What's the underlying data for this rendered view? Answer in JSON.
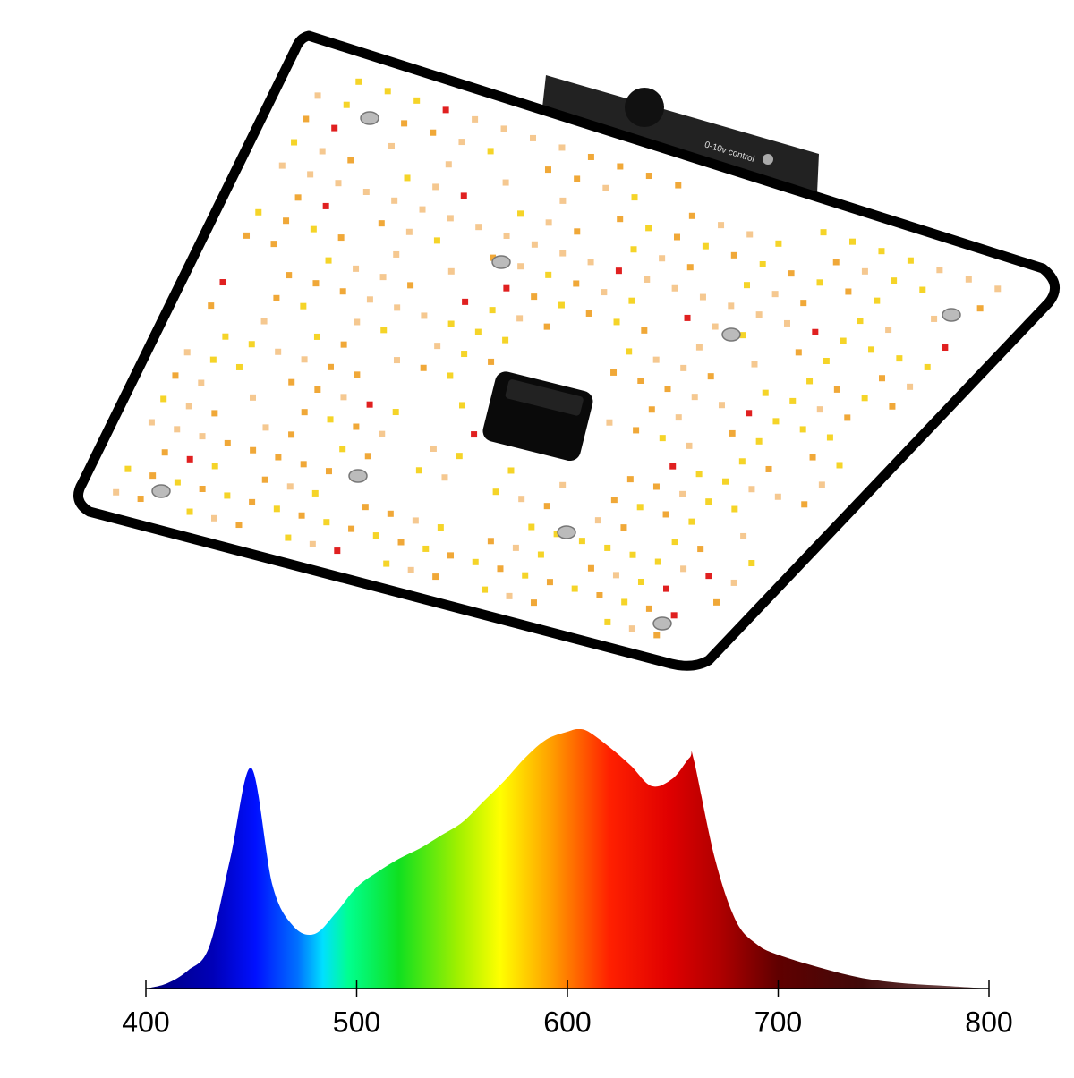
{
  "product": {
    "label": "0-10v control"
  },
  "chart_data": {
    "type": "area",
    "x": [
      400,
      410,
      420,
      430,
      440,
      450,
      460,
      470,
      480,
      490,
      500,
      510,
      520,
      530,
      540,
      550,
      560,
      570,
      580,
      590,
      600,
      605,
      610,
      620,
      630,
      640,
      650,
      658,
      660,
      670,
      680,
      690,
      700,
      720,
      740,
      760,
      780,
      800
    ],
    "values": [
      0,
      2,
      7,
      16,
      50,
      85,
      40,
      24,
      21,
      29,
      39,
      45,
      50,
      54,
      59,
      64,
      72,
      80,
      89,
      96,
      99,
      100,
      99,
      93,
      86,
      78,
      81,
      89,
      88,
      50,
      26,
      17,
      13,
      8,
      4,
      2,
      1,
      0
    ],
    "xlim": [
      400,
      800
    ],
    "xticks": [
      400,
      500,
      600,
      700,
      800
    ],
    "ylim": [
      0,
      100
    ]
  }
}
